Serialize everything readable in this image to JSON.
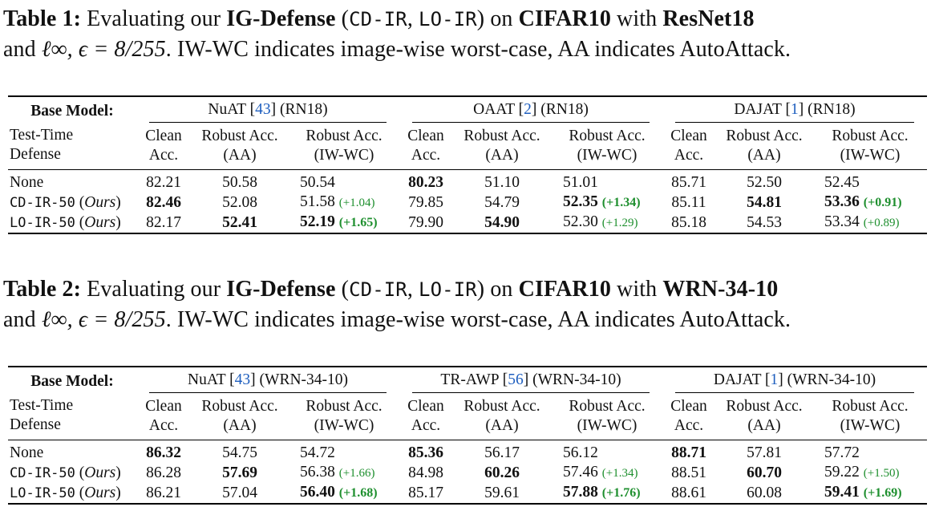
{
  "table1": {
    "caption": {
      "label": "Table 1:",
      "pre": "Evaluating our",
      "method": "IG-Defense",
      "variants": [
        "CD-IR",
        "LO-IR"
      ],
      "mid": "on",
      "dataset": "CIFAR10",
      "with": "with",
      "model": "ResNet18",
      "line2_rest": ". IW-WC indicates image-wise worst-case, AA indicates AutoAttack."
    },
    "base_label": "Base Model:",
    "ttd_label": [
      "Test-Time",
      "Defense"
    ],
    "groups": [
      {
        "name": "NuAT",
        "cite": "43",
        "arch": "(RN18)"
      },
      {
        "name": "OAAT",
        "cite": "2",
        "arch": "(RN18)"
      },
      {
        "name": "DAJAT",
        "cite": "1",
        "arch": "(RN18)"
      }
    ],
    "subheaders": [
      [
        "Clean",
        "Acc."
      ],
      [
        "Robust Acc.",
        "(AA)"
      ],
      [
        "Robust Acc.",
        "(IW-WC)"
      ]
    ],
    "rows": [
      {
        "defense": "None",
        "ours": "",
        "cells": [
          {
            "v": "82.21"
          },
          {
            "v": "50.58"
          },
          {
            "v": "50.54"
          },
          {
            "v": "80.23",
            "bold": true
          },
          {
            "v": "51.10"
          },
          {
            "v": "51.01"
          },
          {
            "v": "85.71"
          },
          {
            "v": "52.50"
          },
          {
            "v": "52.45"
          }
        ]
      },
      {
        "defense": "CD-IR-50",
        "ours": "Ours",
        "cells": [
          {
            "v": "82.46",
            "bold": true
          },
          {
            "v": "52.08"
          },
          {
            "v": "51.58",
            "gain": "(+1.04)"
          },
          {
            "v": "79.85"
          },
          {
            "v": "54.79"
          },
          {
            "v": "52.35",
            "bold": true,
            "gain": "(+1.34)"
          },
          {
            "v": "85.11"
          },
          {
            "v": "54.81",
            "bold": true
          },
          {
            "v": "53.36",
            "bold": true,
            "gain": "(+0.91)"
          }
        ]
      },
      {
        "defense": "LO-IR-50",
        "ours": "Ours",
        "cells": [
          {
            "v": "82.17"
          },
          {
            "v": "52.41",
            "bold": true
          },
          {
            "v": "52.19",
            "bold": true,
            "gain": "(+1.65)"
          },
          {
            "v": "79.90"
          },
          {
            "v": "54.90",
            "bold": true
          },
          {
            "v": "52.30",
            "gain": "(+1.29)"
          },
          {
            "v": "85.18"
          },
          {
            "v": "54.53"
          },
          {
            "v": "53.34",
            "gain": "(+0.89)"
          }
        ]
      }
    ]
  },
  "table2": {
    "caption": {
      "label": "Table 2:",
      "pre": "Evaluating our",
      "method": "IG-Defense",
      "variants": [
        "CD-IR",
        "LO-IR"
      ],
      "mid": "on",
      "dataset": "CIFAR10",
      "with": "with",
      "model": "WRN-34-10",
      "line2_rest": ". IW-WC indicates image-wise worst-case, AA indicates AutoAttack."
    },
    "base_label": "Base Model:",
    "ttd_label": [
      "Test-Time",
      "Defense"
    ],
    "groups": [
      {
        "name": "NuAT",
        "cite": "43",
        "arch": "(WRN-34-10)"
      },
      {
        "name": "TR-AWP",
        "cite": "56",
        "arch": "(WRN-34-10)"
      },
      {
        "name": "DAJAT",
        "cite": "1",
        "arch": "(WRN-34-10)"
      }
    ],
    "subheaders": [
      [
        "Clean",
        "Acc."
      ],
      [
        "Robust Acc.",
        "(AA)"
      ],
      [
        "Robust Acc.",
        "(IW-WC)"
      ]
    ],
    "rows": [
      {
        "defense": "None",
        "ours": "",
        "cells": [
          {
            "v": "86.32",
            "bold": true
          },
          {
            "v": "54.75"
          },
          {
            "v": "54.72"
          },
          {
            "v": "85.36",
            "bold": true
          },
          {
            "v": "56.17"
          },
          {
            "v": "56.12"
          },
          {
            "v": "88.71",
            "bold": true
          },
          {
            "v": "57.81"
          },
          {
            "v": "57.72"
          }
        ]
      },
      {
        "defense": "CD-IR-50",
        "ours": "Ours",
        "cells": [
          {
            "v": "86.28"
          },
          {
            "v": "57.69",
            "bold": true
          },
          {
            "v": "56.38",
            "gain": "(+1.66)"
          },
          {
            "v": "84.98"
          },
          {
            "v": "60.26",
            "bold": true
          },
          {
            "v": "57.46",
            "gain": "(+1.34)"
          },
          {
            "v": "88.51"
          },
          {
            "v": "60.70",
            "bold": true
          },
          {
            "v": "59.22",
            "gain": "(+1.50)"
          }
        ]
      },
      {
        "defense": "LO-IR-50",
        "ours": "Ours",
        "cells": [
          {
            "v": "86.21"
          },
          {
            "v": "57.04"
          },
          {
            "v": "56.40",
            "bold": true,
            "gain": "(+1.68)"
          },
          {
            "v": "85.17"
          },
          {
            "v": "59.61"
          },
          {
            "v": "57.88",
            "bold": true,
            "gain": "(+1.76)"
          },
          {
            "v": "88.61"
          },
          {
            "v": "60.08"
          },
          {
            "v": "59.41",
            "bold": true,
            "gain": "(+1.69)"
          }
        ]
      }
    ]
  },
  "math": {
    "linf_eps": "ℓ∞, ϵ = 8/255"
  }
}
